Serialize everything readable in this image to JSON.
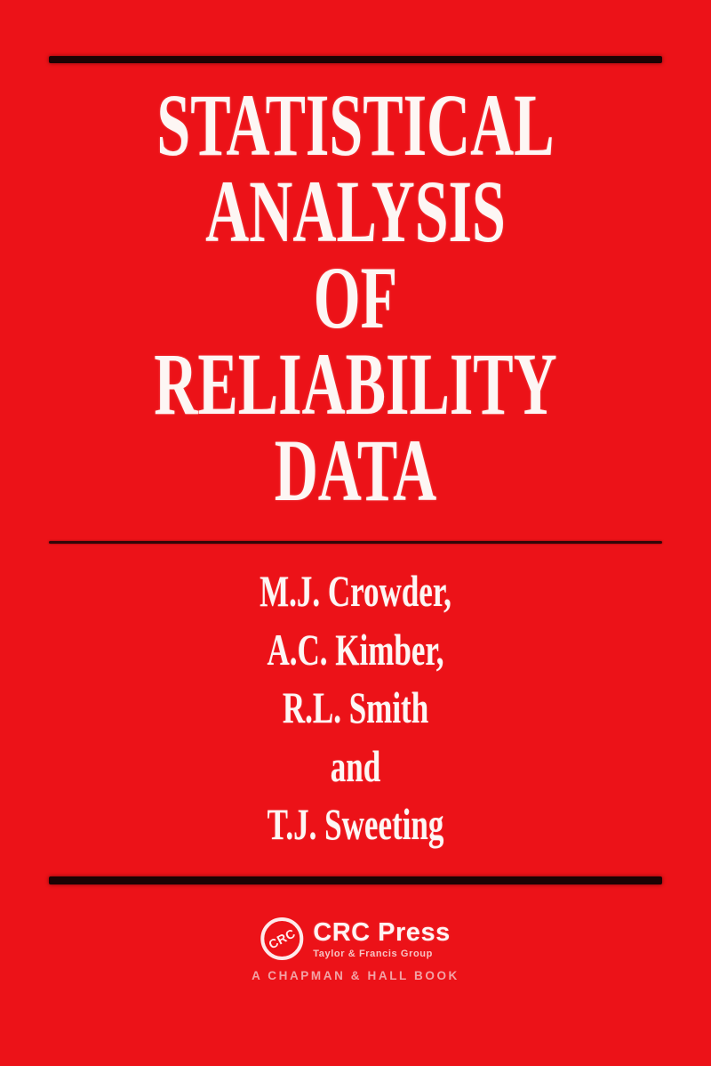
{
  "cover": {
    "title_lines": [
      "STATISTICAL",
      "ANALYSIS",
      "OF",
      "RELIABILITY",
      "DATA"
    ],
    "authors": [
      "M.J. Crowder,",
      "A.C. Kimber,",
      "R.L. Smith",
      "and",
      "T.J. Sweeting"
    ],
    "publisher": {
      "logo_text": "CRC",
      "name": "CRC Press",
      "tagline": "Taylor & Francis Group",
      "imprint": "A CHAPMAN & HALL BOOK"
    },
    "colors": {
      "background": "#ec1218",
      "rule": "#1c0304",
      "text": "#fdf6f4",
      "tagline": "#f8e3e1",
      "imprint": "#f2a3a6"
    }
  }
}
